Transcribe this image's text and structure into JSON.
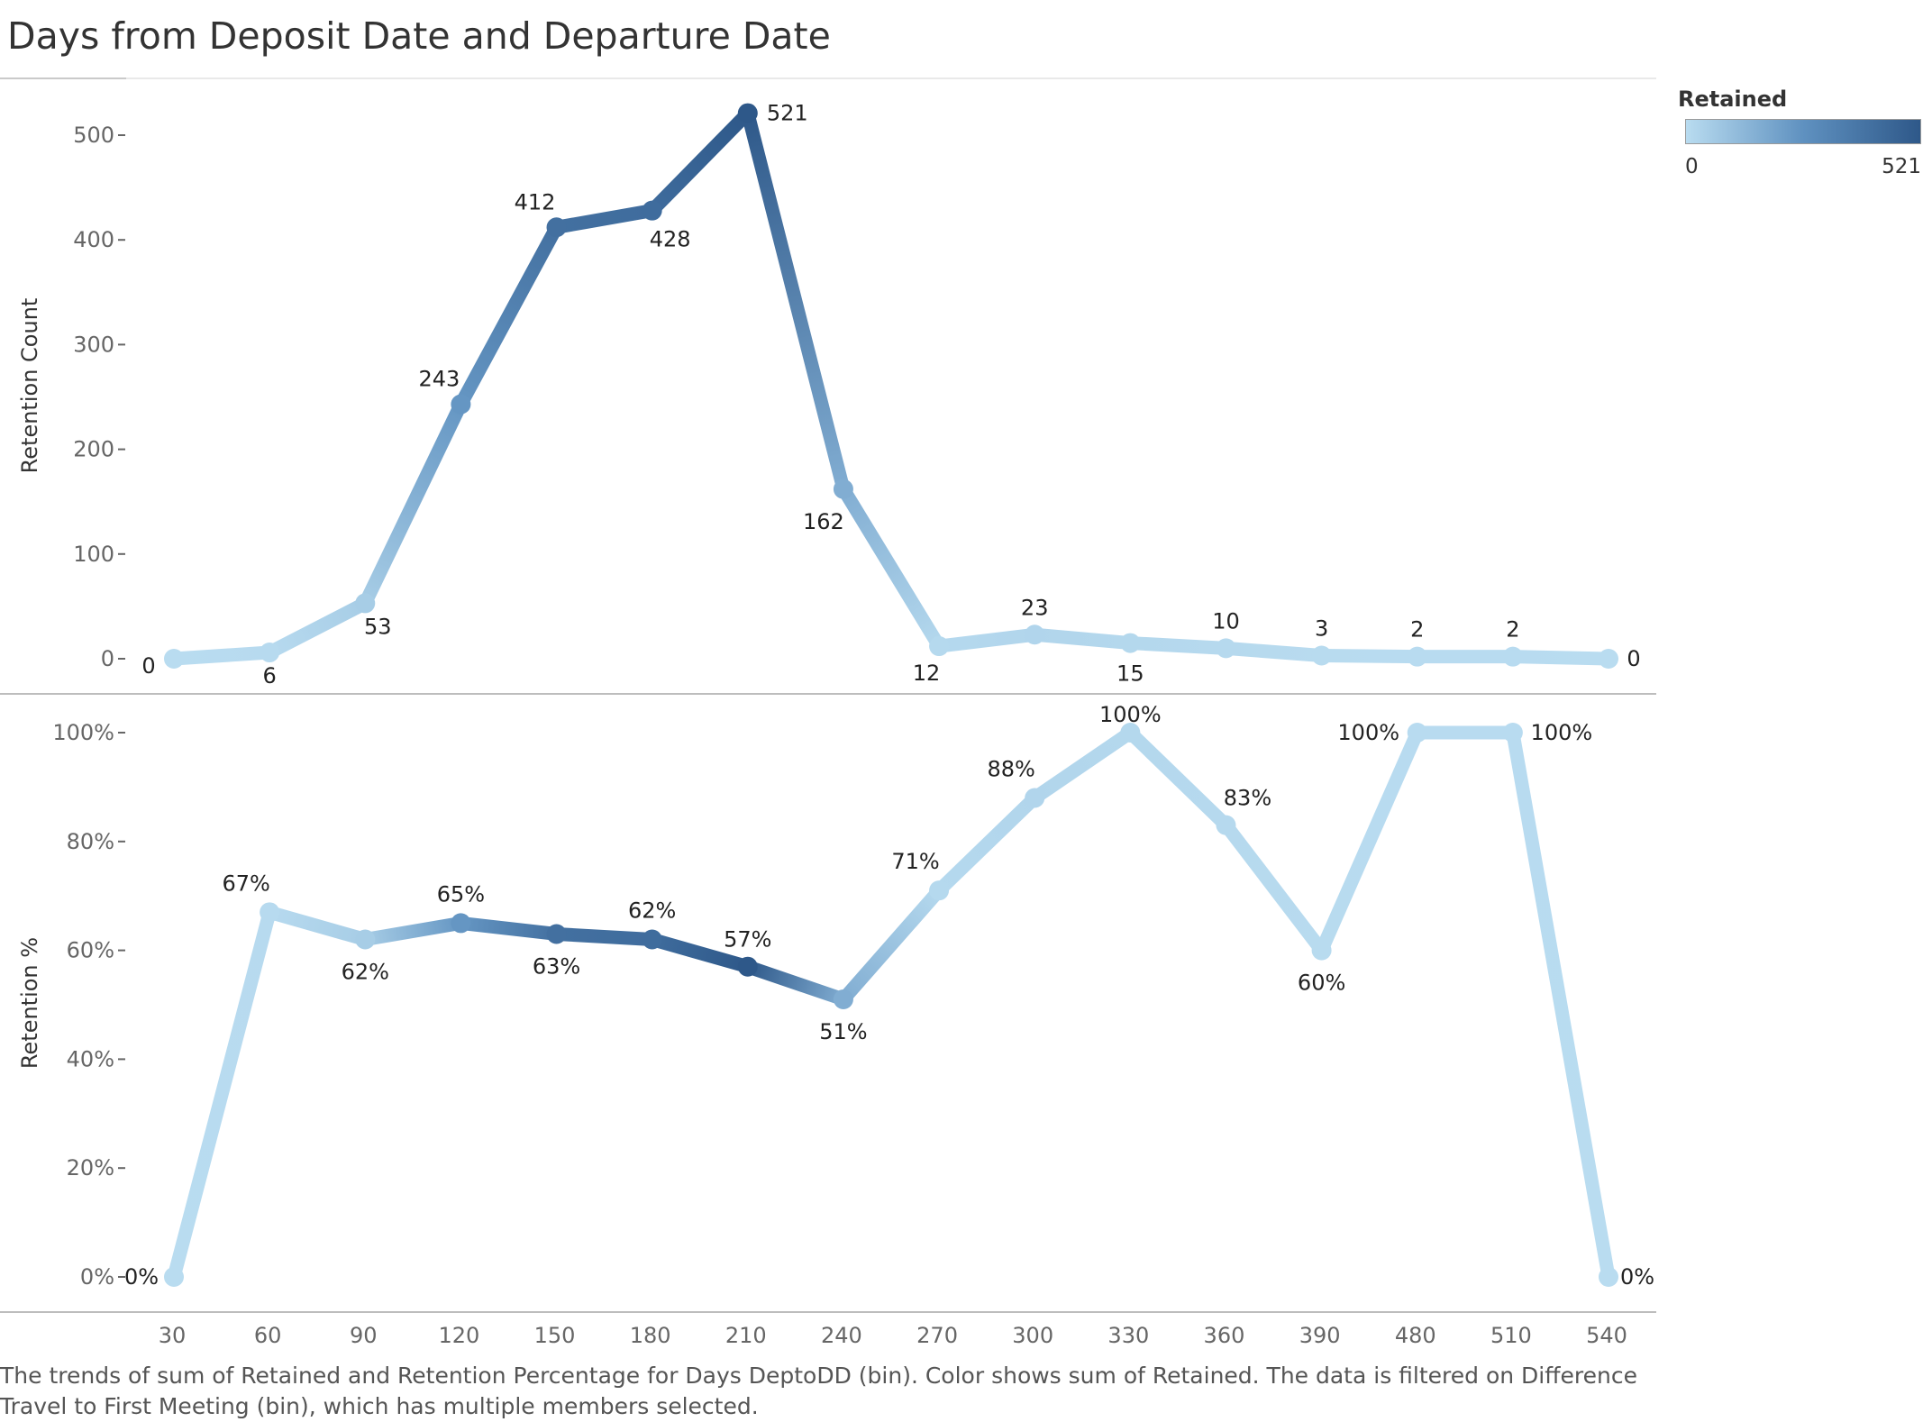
{
  "title": "Days from Deposit Date and Departure Date",
  "caption": "The trends of sum of Retained and Retention Percentage for Days DeptoDD (bin).  Color shows sum of Retained. The data is filtered on Difference Travel to First Meeting (bin), which has multiple members selected.",
  "legend": {
    "title": "Retained",
    "min_label": "0",
    "max_label": "521",
    "min": 0,
    "max": 521
  },
  "colors": {
    "low": "#b9dcf0",
    "mid": "#5f91c0",
    "high": "#2e5889"
  },
  "chart_data": [
    {
      "type": "line",
      "ylabel": "Retention Count",
      "ylim": [
        0,
        560
      ],
      "yticks": [
        0,
        100,
        200,
        300,
        400,
        500
      ],
      "ytick_labels": [
        "0",
        "100",
        "200",
        "300",
        "400",
        "500"
      ],
      "x": [
        30,
        60,
        90,
        120,
        150,
        180,
        210,
        240,
        270,
        300,
        330,
        360,
        390,
        480,
        510,
        540
      ],
      "values": [
        0,
        6,
        53,
        243,
        412,
        428,
        521,
        162,
        12,
        23,
        15,
        10,
        3,
        2,
        2,
        0
      ],
      "labels": [
        "0",
        "6",
        "53",
        "243",
        "412",
        "428",
        "521",
        "162",
        "12",
        "23",
        "15",
        "10",
        "3",
        "2",
        "2",
        "0"
      ],
      "color_values": [
        0,
        6,
        53,
        243,
        412,
        428,
        521,
        162,
        12,
        23,
        15,
        10,
        3,
        2,
        2,
        0
      ]
    },
    {
      "type": "line",
      "ylabel": "Retention %",
      "ylim": [
        0,
        1.05
      ],
      "yticks": [
        0,
        0.2,
        0.4,
        0.6,
        0.8,
        1.0
      ],
      "ytick_labels": [
        "0%",
        "20%",
        "40%",
        "60%",
        "80%",
        "100%"
      ],
      "x": [
        30,
        60,
        90,
        120,
        150,
        180,
        210,
        240,
        270,
        300,
        330,
        360,
        390,
        480,
        510,
        540
      ],
      "xtick_labels": [
        "30",
        "60",
        "90",
        "120",
        "150",
        "180",
        "210",
        "240",
        "270",
        "300",
        "330",
        "360",
        "390",
        "480",
        "510",
        "540"
      ],
      "values": [
        0,
        0.67,
        0.62,
        0.65,
        0.63,
        0.62,
        0.57,
        0.51,
        0.71,
        0.88,
        1.0,
        0.83,
        0.6,
        1.0,
        1.0,
        0
      ],
      "labels": [
        "0%",
        "67%",
        "62%",
        "65%",
        "63%",
        "62%",
        "57%",
        "51%",
        "71%",
        "88%",
        "100%",
        "83%",
        "60%",
        "100%",
        "100%",
        "0%"
      ],
      "color_values": [
        0,
        6,
        53,
        243,
        412,
        428,
        521,
        162,
        12,
        23,
        15,
        10,
        3,
        2,
        2,
        0
      ]
    }
  ]
}
